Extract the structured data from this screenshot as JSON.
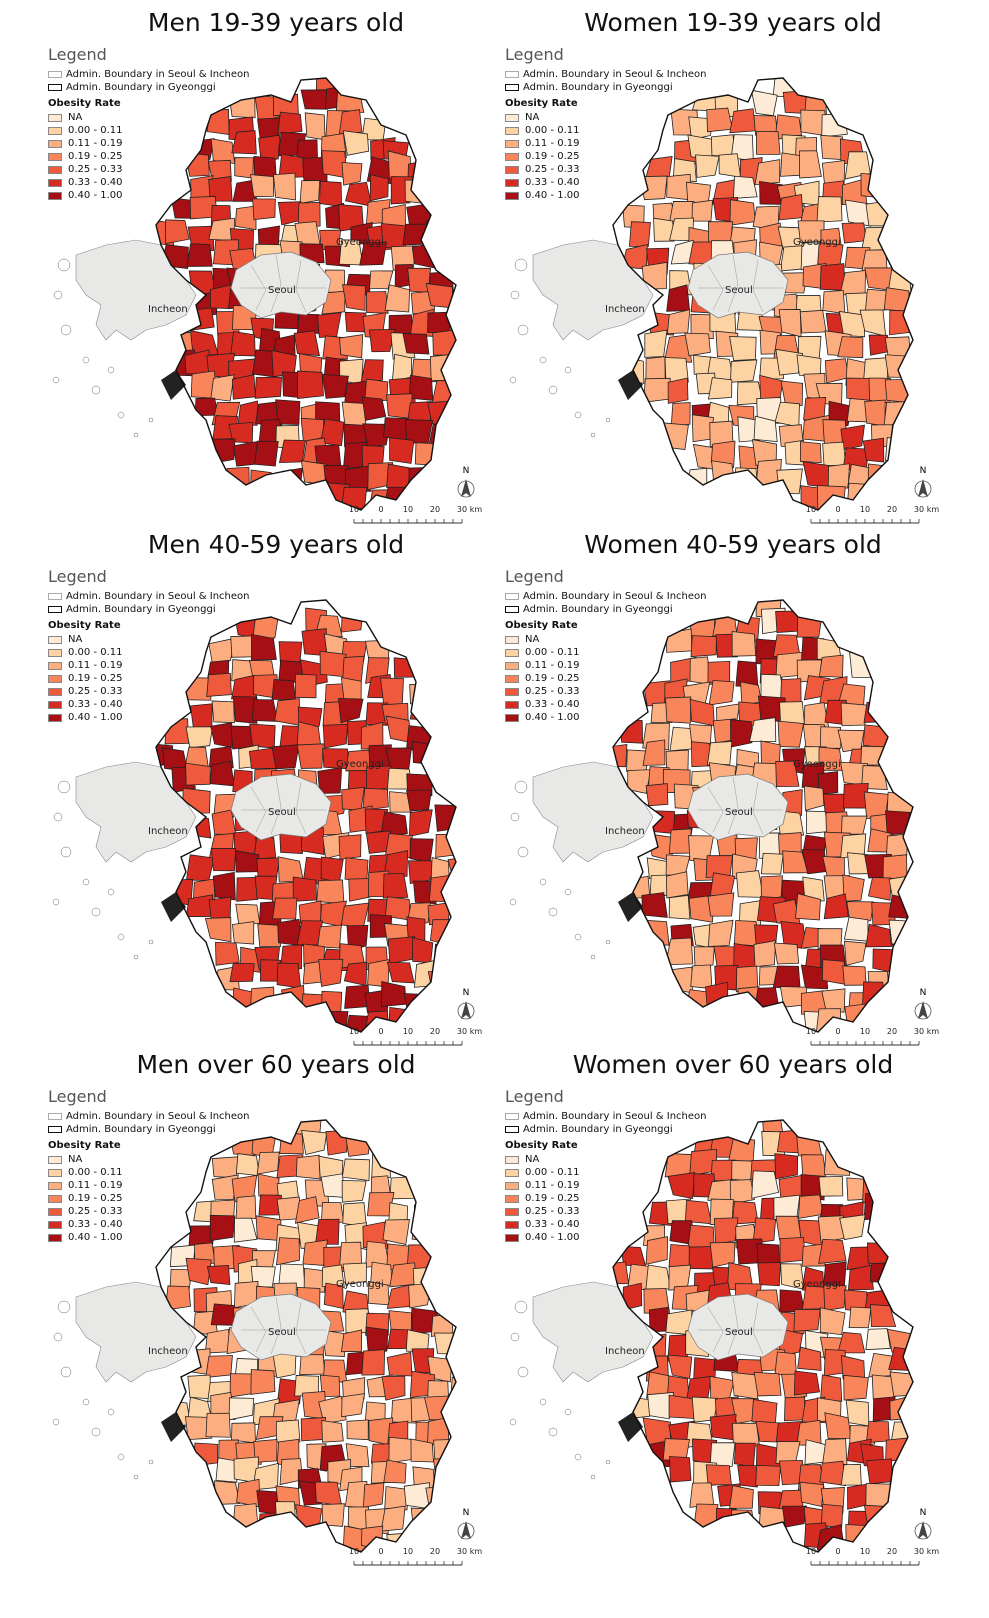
{
  "legend": {
    "heading": "Legend",
    "boundary_seoul_incheon": "Admin. Boundary in Seoul & Incheon",
    "boundary_gyeonggi": "Admin. Boundary in Gyeonggi",
    "obesity_heading": "Obesity Rate",
    "classes": [
      {
        "label": "NA",
        "color": "#fdebd6"
      },
      {
        "label": "0.00 - 0.11",
        "color": "#fdd3a3"
      },
      {
        "label": "0.11 - 0.19",
        "color": "#fcae80"
      },
      {
        "label": "0.19 - 0.25",
        "color": "#f9855a"
      },
      {
        "label": "0.25 - 0.33",
        "color": "#f05a3c"
      },
      {
        "label": "0.33 - 0.40",
        "color": "#d72b22"
      },
      {
        "label": "0.40 - 1.00",
        "color": "#a60f13"
      }
    ]
  },
  "places": {
    "seoul": "Seoul",
    "incheon": "Incheon",
    "gyeonggi": "Gyeonggi"
  },
  "north_label": "N",
  "scale": {
    "ticks": [
      "10",
      "0",
      "10",
      "20",
      "30"
    ],
    "unit": "km"
  },
  "panels": [
    {
      "id": "men-19-39",
      "title": "Men 19-39 years old"
    },
    {
      "id": "women-19-39",
      "title": "Women 19-39 years old"
    },
    {
      "id": "men-40-59",
      "title": "Men 40-59 years old"
    },
    {
      "id": "women-40-59",
      "title": "Women 40-59 years old"
    },
    {
      "id": "men-60",
      "title": "Men over 60 years old"
    },
    {
      "id": "women-60",
      "title": "Women over 60 years old"
    }
  ],
  "colors": {
    "seoul_incheon_fill": "#e8e8e6",
    "boundary": "#222222"
  }
}
